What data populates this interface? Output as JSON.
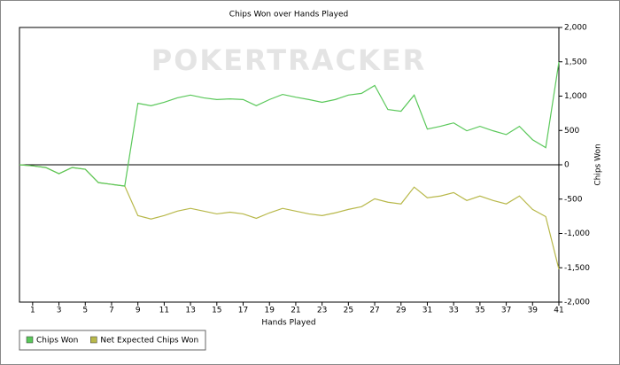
{
  "chart_data": {
    "type": "line",
    "title": "Chips Won over Hands Played",
    "watermark": "POKERTRACKER",
    "x_label": "Hands Played",
    "y_label": "Chips Won",
    "x": [
      0,
      1,
      2,
      3,
      4,
      5,
      6,
      7,
      8,
      9,
      10,
      11,
      12,
      13,
      14,
      15,
      16,
      17,
      18,
      19,
      20,
      21,
      22,
      23,
      24,
      25,
      26,
      27,
      28,
      29,
      30,
      31,
      32,
      33,
      34,
      35,
      36,
      37,
      38,
      39,
      40,
      41
    ],
    "series": [
      {
        "name": "Chips Won",
        "color": "#5ac85a",
        "axis": "y2",
        "values": [
          0,
          -15,
          -40,
          -130,
          -40,
          -65,
          -260,
          -285,
          -310,
          895,
          860,
          910,
          975,
          1015,
          975,
          950,
          960,
          950,
          860,
          950,
          1025,
          985,
          950,
          910,
          950,
          1015,
          1040,
          1155,
          805,
          780,
          1015,
          520,
          560,
          610,
          495,
          560,
          495,
          440,
          560,
          365,
          250,
          1495
        ]
      },
      {
        "name": "Net Expected Chips Won",
        "color": "#b8b84a",
        "axis": "y2",
        "values": [
          0,
          -15,
          -40,
          -130,
          -40,
          -65,
          -260,
          -285,
          -310,
          -740,
          -790,
          -740,
          -675,
          -635,
          -675,
          -715,
          -690,
          -715,
          -780,
          -700,
          -635,
          -675,
          -715,
          -740,
          -700,
          -650,
          -610,
          -495,
          -545,
          -570,
          -325,
          -480,
          -455,
          -405,
          -520,
          -455,
          -520,
          -570,
          -455,
          -650,
          -755,
          -1520
        ]
      }
    ],
    "xlim": [
      0,
      41
    ],
    "xticks": [
      1,
      3,
      5,
      7,
      9,
      11,
      13,
      15,
      17,
      19,
      21,
      23,
      25,
      27,
      29,
      31,
      33,
      35,
      37,
      39,
      41
    ],
    "y2lim": [
      -2000,
      2000
    ],
    "y2ticks": [
      {
        "value": 2000,
        "label": "2,000"
      },
      {
        "value": 1500,
        "label": "1,500"
      },
      {
        "value": 1000,
        "label": "1,000"
      },
      500,
      0,
      -500,
      {
        "value": -1000,
        "label": "-1,000"
      },
      {
        "value": -1500,
        "label": "-1,500"
      },
      {
        "value": -2000,
        "label": "-2,000"
      }
    ],
    "grid": false,
    "legend": "bottom-left"
  }
}
